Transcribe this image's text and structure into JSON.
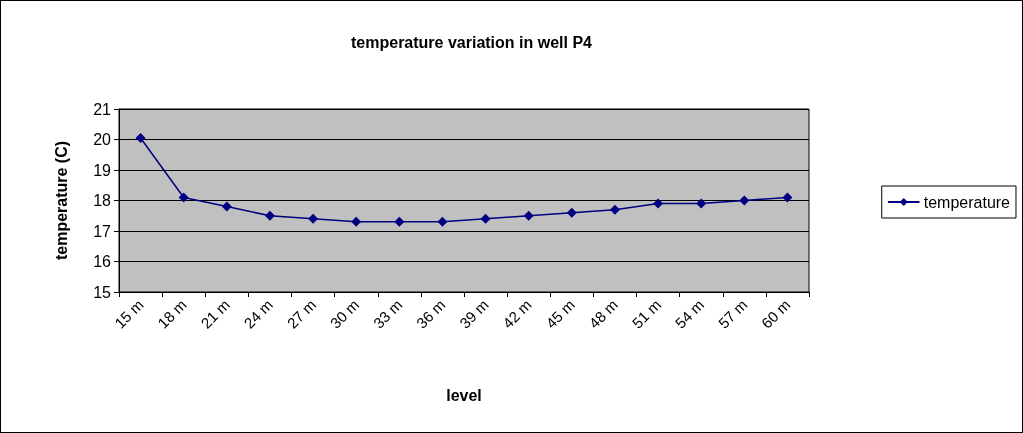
{
  "chart_data": {
    "type": "line",
    "title": "temperature variation in well P4",
    "xlabel": "level",
    "ylabel": "temperature (C)",
    "categories": [
      "15 m",
      "18 m",
      "21 m",
      "24 m",
      "27 m",
      "30 m",
      "33 m",
      "36 m",
      "39 m",
      "42 m",
      "45 m",
      "48 m",
      "51 m",
      "54 m",
      "57 m",
      "60 m"
    ],
    "series": [
      {
        "name": "temperature",
        "color": "#000080",
        "values": [
          20.05,
          18.1,
          17.8,
          17.5,
          17.4,
          17.3,
          17.3,
          17.3,
          17.4,
          17.5,
          17.6,
          17.7,
          17.9,
          17.9,
          18.0,
          18.1
        ]
      }
    ],
    "ylim": [
      15,
      21
    ],
    "yticks": [
      15,
      16,
      17,
      18,
      19,
      20,
      21
    ],
    "grid": "y",
    "legend": "right",
    "marker": "diamond",
    "line_style": "solid"
  }
}
